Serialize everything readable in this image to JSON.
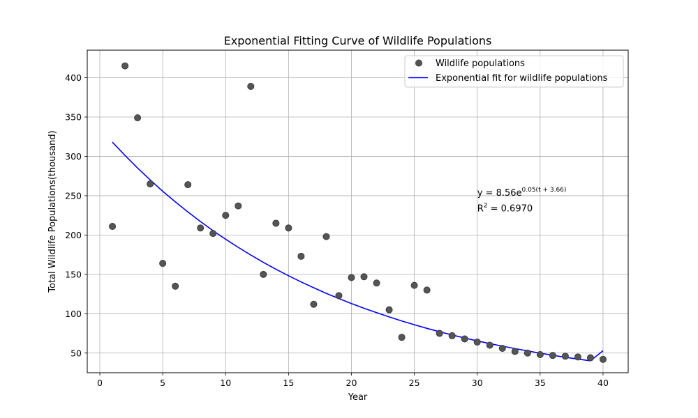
{
  "chart_data": {
    "type": "scatter",
    "title": "Exponential Fitting Curve of Wildlife Populations",
    "xlabel": "Year",
    "ylabel": "Total Wildlife Populations(thousand)",
    "xlim": [
      -1,
      42
    ],
    "ylim": [
      25,
      435
    ],
    "x_ticks": [
      0,
      5,
      10,
      15,
      20,
      25,
      30,
      35,
      40
    ],
    "y_ticks": [
      50,
      100,
      150,
      200,
      250,
      300,
      350,
      400
    ],
    "grid": true,
    "legend_position": "top-right",
    "series": [
      {
        "name": "Wildlife populations",
        "kind": "scatter",
        "color": "#555555",
        "x": [
          1,
          2,
          3,
          4,
          5,
          6,
          7,
          8,
          9,
          10,
          11,
          12,
          13,
          14,
          15,
          16,
          17,
          18,
          19,
          20,
          21,
          22,
          23,
          24,
          25,
          26,
          27,
          28,
          29,
          30,
          31,
          32,
          33,
          34,
          35,
          36,
          37,
          38,
          39,
          40
        ],
        "y": [
          211,
          415,
          349,
          265,
          164,
          135,
          264,
          209,
          202,
          225,
          237,
          389,
          150,
          215,
          209,
          173,
          112,
          198,
          123,
          146,
          147,
          139,
          105,
          70,
          136,
          130,
          75,
          72,
          68,
          64,
          60,
          56,
          52,
          50,
          48,
          47,
          46,
          45,
          44,
          42
        ]
      },
      {
        "name": "Exponential fit for wildlife populations",
        "kind": "line",
        "color": "#0000ff",
        "x": [
          1,
          2,
          3,
          4,
          5,
          6,
          7,
          8,
          9,
          10,
          11,
          12,
          13,
          14,
          15,
          16,
          17,
          18,
          19,
          20,
          21,
          22,
          23,
          24,
          25,
          26,
          27,
          28,
          29,
          30,
          31,
          32,
          33,
          34,
          35,
          36,
          37,
          38,
          39,
          40
        ],
        "y": [
          318.0,
          301.2,
          285.2,
          270.1,
          255.7,
          242.2,
          229.3,
          217.2,
          205.6,
          194.7,
          184.4,
          174.6,
          165.3,
          156.6,
          148.3,
          140.4,
          133.0,
          125.9,
          119.3,
          112.9,
          106.9,
          101.3,
          95.9,
          90.8,
          86.0,
          81.4,
          77.1,
          73.0,
          69.1,
          65.5,
          62.0,
          58.7,
          55.6,
          52.7,
          49.9,
          47.2,
          44.7,
          42.4,
          40.1,
          53.0
        ]
      }
    ],
    "annotations": [
      {
        "base": "y = 8.56e",
        "superscript": "0.05(t + 3.66)",
        "x": 30.0,
        "y": 250
      },
      {
        "base": "R",
        "superscript": "2",
        "tail": " = 0.6970",
        "x": 30.0,
        "y": 230
      }
    ]
  }
}
